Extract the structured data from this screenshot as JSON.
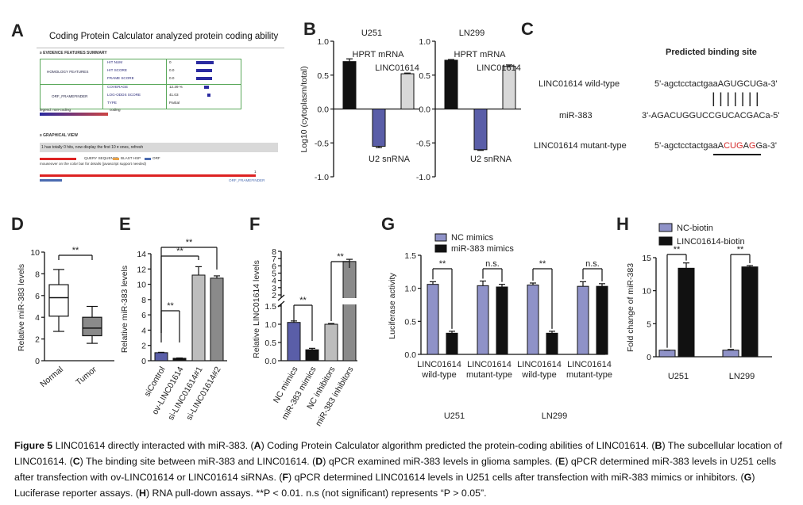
{
  "panel_labels": {
    "A": "A",
    "B": "B",
    "C": "C",
    "D": "D",
    "E": "E",
    "F": "F",
    "G": "G",
    "H": "H"
  },
  "panelA": {
    "title": "Coding Protein Calculator analyzed protein coding ability",
    "evidence_header": "≥ EVIDENCE FEATURES SUMMARY",
    "group1": "HOMOLOGY FEATURES",
    "group2": "ORF_FRAMEFINDER",
    "rows": [
      {
        "name": "HIT NUM",
        "value": "0"
      },
      {
        "name": "HIT SCORE",
        "value": "0.0"
      },
      {
        "name": "FRAME SCORE",
        "value": "0.0"
      },
      {
        "name": "COVERAGE",
        "value": "12.39 %"
      },
      {
        "name": "LOG-ODDS SCORE",
        "value": "41.03"
      },
      {
        "name": "TYPE",
        "value": "Partial"
      }
    ],
    "legend_left": "legend: non-coding",
    "legend_right": "coding",
    "graphical_header": "≥ GRAPHICAL VIEW",
    "hits_text": "1 has totally 0 hits, now display the first  10 ▾  ones,  refresh",
    "legend_items": [
      "QUERY SEQUENCE",
      "BLAST HSP",
      "ORF"
    ],
    "mouseover": "mouseover on the color bar for details (javascript support needed)",
    "orf_label": "ORF_FRAMEFINDER",
    "one": "1"
  },
  "panelC": {
    "header": "Predicted binding site",
    "wt_label": "LINC01614 wild-type",
    "mir_label": "miR-383",
    "mut_label": "LINC01614 mutant-type",
    "wt_pre": "5'-agctcctactgaa",
    "wt_site": "AGUGCUG",
    "wt_post": "a-3'",
    "mir_seq": "3'-AGACUGGUCCGUCACGACa-5'",
    "mut_pre": "5'-agctcctactgaa",
    "mut_1": "A",
    "mut_2": "CUG",
    "mut_3": "A",
    "mut_4": "G",
    "mut_5": "G",
    "mut_post": "a-3'",
    "pairs": "|||||||"
  },
  "caption": {
    "fig": "Figure 5",
    "text1": " LINC01614 directly interacted with miR-383. (",
    "A": "A",
    "text2": ") Coding Protein Calculator algorithm predicted the protein-coding abilities of LINC01614. (",
    "B": "B",
    "text3": ") The subcellular location of LINC01614. (",
    "C": "C",
    "text4": ") The binding site between miR-383 and LINC01614. (",
    "D": "D",
    "text5": ") qPCR examined miR-383 levels in glioma samples. (",
    "E": "E",
    "text6": ") qPCR determined miR-383 levels in U251 cells after transfection with ov-LINC01614 or LINC01614 siRNAs. (",
    "F": "F",
    "text7": ") qPCR determined LINC01614 levels in U251 cells after transfection with miR-383 mimics or inhibitors. (",
    "G": "G",
    "text8": ") Luciferase reporter assays. (",
    "H": "H",
    "text9": ") RNA pull-down assays. **P < 0.01. n.s (not significant) represents “P > 0.05”."
  },
  "chart_data": [
    {
      "id": "B1",
      "type": "bar",
      "title": "U251",
      "ylabel": "Log10 (cytoplasm/total)",
      "ylim": [
        -1.0,
        1.0
      ],
      "yticks": [
        "-1.0",
        "-0.5",
        "0.0",
        "0.5",
        "1.0"
      ],
      "categories": [
        "HPRT mRNA",
        "U2 snRNA",
        "LINC01614"
      ],
      "values": [
        0.7,
        -0.55,
        0.52
      ],
      "errors": [
        0.04,
        0.02,
        0.01
      ],
      "colors": [
        "#111111",
        "#5a5ea8",
        "#d8d8d8"
      ]
    },
    {
      "id": "B2",
      "type": "bar",
      "title": "LN299",
      "ylabel": "",
      "ylim": [
        -1.0,
        1.0
      ],
      "yticks": [
        "-1.0",
        "-0.5",
        "0.0",
        "0.5",
        "1.0"
      ],
      "categories": [
        "HPRT mRNA",
        "U2 snRNA",
        "LINC01614"
      ],
      "values": [
        0.72,
        -0.6,
        0.63
      ],
      "errors": [
        0.01,
        0.01,
        0.02
      ],
      "colors": [
        "#111111",
        "#5a5ea8",
        "#d8d8d8"
      ]
    },
    {
      "id": "D",
      "type": "box",
      "ylabel": "Relative miR-383 levels",
      "ylim": [
        0,
        10
      ],
      "yticks": [
        "0",
        "2",
        "4",
        "6",
        "8",
        "10"
      ],
      "categories": [
        "Normal",
        "Tumor"
      ],
      "boxes": [
        {
          "min": 2.7,
          "q1": 4.1,
          "median": 5.8,
          "q3": 7.0,
          "max": 8.4,
          "color": "#ffffff"
        },
        {
          "min": 1.6,
          "q1": 2.3,
          "median": 3.0,
          "q3": 4.0,
          "max": 5.0,
          "color": "#8a8a8a"
        }
      ],
      "annotation": "**"
    },
    {
      "id": "E",
      "type": "bar",
      "ylabel": "Relative miR-383 levels",
      "ylim": [
        0,
        14
      ],
      "yticks": [
        "0",
        "2",
        "4",
        "6",
        "8",
        "10",
        "12",
        "14"
      ],
      "categories": [
        "siControl",
        "ov-LINC01614",
        "si-LINC01614#1",
        "si-LINC01614#2"
      ],
      "values": [
        1.05,
        0.32,
        11.2,
        10.8
      ],
      "errors": [
        0.05,
        0.04,
        1.1,
        0.3
      ],
      "colors": [
        "#5a5ea8",
        "#111111",
        "#bdbdbd",
        "#8a8a8a"
      ],
      "annotations": [
        "**",
        "**",
        "**"
      ]
    },
    {
      "id": "F",
      "type": "bar",
      "ylabel": "Relative LINC01614 levels",
      "ylim": [
        0,
        8
      ],
      "yticks": [
        "0.0",
        "0.5",
        "1.0",
        "1.5",
        "2",
        "3",
        "4",
        "5",
        "6",
        "7",
        "8"
      ],
      "categories": [
        "NC mimics",
        "miR-383 mimics",
        "NC inhibitors",
        "miR-383 inhibitors"
      ],
      "values": [
        1.05,
        0.3,
        1.0,
        6.6
      ],
      "errors": [
        0.04,
        0.04,
        0.02,
        0.3
      ],
      "colors": [
        "#5a5ea8",
        "#111111",
        "#bdbdbd",
        "#8a8a8a"
      ],
      "annotations": [
        "**",
        "**"
      ]
    },
    {
      "id": "G",
      "type": "bar",
      "ylabel": "Luciferase activity",
      "ylim": [
        0,
        1.5
      ],
      "yticks": [
        "0.0",
        "0.5",
        "1.0",
        "1.5"
      ],
      "legend": [
        "NC mimics",
        "miR-383 mimics"
      ],
      "categories": [
        "LINC01614 wild-type",
        "LINC01614 mutant-type",
        "LINC01614 wild-type",
        "LINC01614 mutant-type"
      ],
      "group_labels": [
        "U251",
        "LN299"
      ],
      "series": [
        {
          "name": "NC mimics",
          "values": [
            1.06,
            1.04,
            1.05,
            1.03
          ],
          "errors": [
            0.04,
            0.07,
            0.03,
            0.07
          ],
          "color": "#8f92c8"
        },
        {
          "name": "miR-383 mimics",
          "values": [
            0.32,
            1.02,
            0.32,
            1.03
          ],
          "errors": [
            0.03,
            0.04,
            0.03,
            0.04
          ],
          "color": "#111111"
        }
      ],
      "annotations": [
        "**",
        "n.s.",
        "**",
        "n.s."
      ]
    },
    {
      "id": "H",
      "type": "bar",
      "ylabel": "Fold change of miR-383",
      "ylim": [
        0,
        15
      ],
      "yticks": [
        "0",
        "5",
        "10",
        "15"
      ],
      "legend": [
        "NC-biotin",
        "LINC01614-biotin"
      ],
      "categories": [
        "U251",
        "LN299"
      ],
      "series": [
        {
          "name": "NC-biotin",
          "values": [
            1.0,
            1.0
          ],
          "errors": [
            0.0,
            0.1
          ],
          "color": "#8f92c8"
        },
        {
          "name": "LINC01614-biotin",
          "values": [
            13.4,
            13.6
          ],
          "errors": [
            0.8,
            0.2
          ],
          "color": "#111111"
        }
      ],
      "annotations": [
        "**",
        "**"
      ]
    }
  ]
}
